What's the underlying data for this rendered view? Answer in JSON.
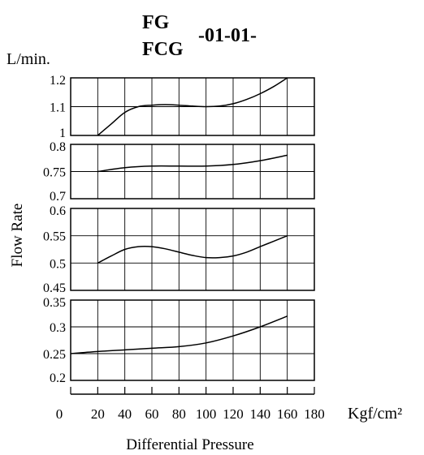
{
  "chart_data": {
    "type": "line",
    "title": {
      "model_top": "FG",
      "model_bottom": "FCG",
      "suffix": "-01-01-"
    },
    "ylabel": "Flow Rate",
    "yunit": "L/min.",
    "xlabel": "Differential Pressure",
    "xunit": "Kgf/cm²",
    "xlim": [
      0,
      180
    ],
    "x_ticks": [
      0,
      20,
      40,
      60,
      80,
      100,
      120,
      140,
      160,
      180
    ],
    "x_tick_labels": [
      "0",
      "20",
      "40",
      "60",
      "80",
      "100",
      "120",
      "140",
      "160",
      "180"
    ],
    "grid": true,
    "panels": [
      {
        "ylim": [
          1.0,
          1.2
        ],
        "y_ticks": [
          1.0,
          1.1,
          1.2
        ],
        "y_tick_labels": [
          "1",
          "1.1",
          "1.2"
        ],
        "series": [
          {
            "x": [
              20,
              30,
              40,
              50,
              60,
              70,
              80,
              90,
              100,
              110,
              120,
              130,
              140,
              150,
              160
            ],
            "y": [
              1.0,
              1.04,
              1.08,
              1.1,
              1.105,
              1.107,
              1.105,
              1.102,
              1.1,
              1.102,
              1.11,
              1.125,
              1.145,
              1.17,
              1.2
            ]
          }
        ]
      },
      {
        "ylim": [
          0.7,
          0.8
        ],
        "y_ticks": [
          0.7,
          0.75,
          0.8
        ],
        "y_tick_labels": [
          "0.7",
          "0.75",
          "0.8"
        ],
        "series": [
          {
            "x": [
              20,
              40,
              60,
              80,
              100,
              120,
              140,
              160
            ],
            "y": [
              0.75,
              0.757,
              0.76,
              0.76,
              0.76,
              0.763,
              0.77,
              0.78
            ]
          }
        ]
      },
      {
        "ylim": [
          0.45,
          0.6
        ],
        "y_ticks": [
          0.45,
          0.5,
          0.55,
          0.6
        ],
        "y_tick_labels": [
          "0.45",
          "0.5",
          "0.55",
          "0.6"
        ],
        "series": [
          {
            "x": [
              20,
              30,
              40,
              50,
              60,
              70,
              80,
              90,
              100,
              110,
              120,
              130,
              140,
              150,
              160
            ],
            "y": [
              0.5,
              0.513,
              0.525,
              0.53,
              0.53,
              0.526,
              0.52,
              0.514,
              0.51,
              0.51,
              0.513,
              0.52,
              0.53,
              0.54,
              0.55
            ]
          }
        ]
      },
      {
        "ylim": [
          0.2,
          0.35
        ],
        "y_ticks": [
          0.2,
          0.25,
          0.3,
          0.35
        ],
        "y_tick_labels": [
          "0.2",
          "0.25",
          "0.3",
          "0.35"
        ],
        "series": [
          {
            "x": [
              0,
              20,
              40,
              60,
              80,
              100,
              120,
              140,
              160
            ],
            "y": [
              0.25,
              0.254,
              0.257,
              0.26,
              0.263,
              0.27,
              0.283,
              0.3,
              0.32
            ]
          }
        ]
      }
    ]
  }
}
